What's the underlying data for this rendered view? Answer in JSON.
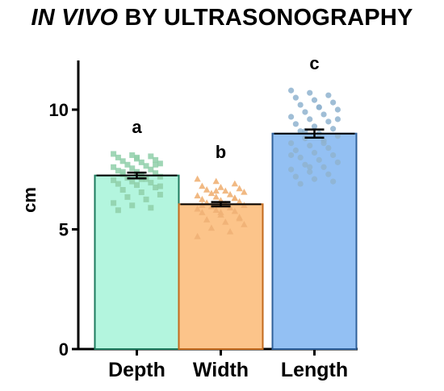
{
  "title": {
    "italic_part": "IN VIVO",
    "rest": " BY ULTRASONOGRAPHY"
  },
  "chart_data": {
    "type": "bar",
    "ylabel": "cm",
    "xlabel": "",
    "ylim": [
      0,
      12
    ],
    "yticks": [
      0,
      5,
      10
    ],
    "categories": [
      "Depth",
      "Width",
      "Length"
    ],
    "values": [
      7.25,
      6.05,
      9.0
    ],
    "error": [
      0.12,
      0.09,
      0.17
    ],
    "significance": [
      "a",
      "b",
      "c"
    ],
    "colors": {
      "fill": [
        "#b3f5de",
        "#fcc48a",
        "#93c0f3"
      ],
      "stroke": [
        "#1e7a5e",
        "#c26a1e",
        "#2e5f99"
      ],
      "points": [
        "#8fcfa9",
        "#f0b176",
        "#8fb3cf"
      ]
    },
    "marker_shapes": [
      "square",
      "triangle",
      "circle"
    ],
    "points": [
      [
        8.15,
        8.1,
        8.05,
        8.0,
        7.95,
        7.9,
        7.85,
        7.8,
        7.75,
        7.7,
        7.65,
        7.6,
        7.55,
        7.5,
        7.45,
        7.4,
        7.35,
        7.3,
        7.25,
        7.2,
        7.15,
        7.1,
        7.05,
        7.0,
        6.95,
        6.9,
        6.85,
        6.75,
        6.65,
        6.55,
        6.45,
        6.35,
        6.25,
        6.1,
        6.0,
        5.9,
        5.8,
        8.0,
        7.7,
        7.4,
        7.1,
        6.8
      ],
      [
        7.1,
        7.0,
        6.9,
        6.8,
        6.75,
        6.7,
        6.65,
        6.6,
        6.55,
        6.5,
        6.45,
        6.4,
        6.35,
        6.3,
        6.25,
        6.2,
        6.15,
        6.1,
        6.05,
        6.0,
        5.95,
        5.9,
        5.85,
        5.8,
        5.75,
        5.7,
        5.6,
        5.5,
        5.4,
        5.3,
        5.2,
        5.05,
        4.9,
        4.7,
        6.6,
        6.3,
        6.0,
        5.7,
        5.45
      ],
      [
        10.8,
        10.7,
        10.6,
        10.5,
        10.4,
        10.3,
        10.2,
        10.1,
        10.0,
        9.9,
        9.8,
        9.7,
        9.6,
        9.5,
        9.4,
        9.3,
        9.2,
        9.1,
        9.0,
        8.9,
        8.8,
        8.7,
        8.6,
        8.5,
        8.4,
        8.3,
        8.2,
        8.1,
        8.0,
        7.9,
        7.8,
        7.7,
        7.6,
        7.5,
        7.4,
        7.3,
        7.2,
        7.1,
        7.0,
        6.9,
        10.1,
        9.6,
        9.1,
        8.6,
        8.1,
        7.6
      ]
    ],
    "grid": false,
    "legend": "none"
  }
}
